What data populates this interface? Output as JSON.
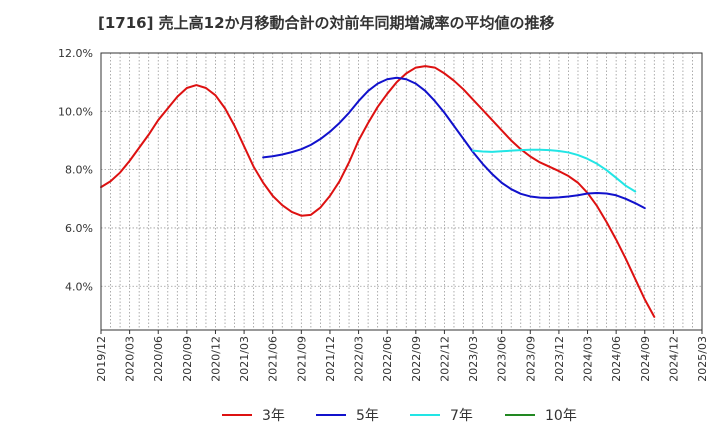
{
  "chart_data": {
    "type": "line",
    "title": "[1716]  売上高12か月移動合計の対前年同期増減率の平均値の推移",
    "xlabel": "",
    "ylabel": "",
    "ylim": [
      2.5,
      12.0
    ],
    "y_ticks": [
      4.0,
      6.0,
      8.0,
      10.0,
      12.0
    ],
    "y_tick_labels": [
      "4.0%",
      "6.0%",
      "8.0%",
      "10.0%",
      "12.0%"
    ],
    "x_tick_labels": [
      "2019/12",
      "2020/03",
      "2020/06",
      "2020/09",
      "2020/12",
      "2021/03",
      "2021/06",
      "2021/09",
      "2021/12",
      "2022/03",
      "2022/06",
      "2022/09",
      "2022/12",
      "2023/03",
      "2023/06",
      "2023/09",
      "2023/12",
      "2024/03",
      "2024/06",
      "2024/09",
      "2024/12",
      "2025/03"
    ],
    "x_range": [
      "2019/12",
      "2025/03"
    ],
    "grid": true,
    "legend_position": "bottom",
    "series": [
      {
        "name": "3年",
        "color": "#dd1111",
        "points": [
          [
            "2019/12",
            7.4
          ],
          [
            "2020/01",
            7.6
          ],
          [
            "2020/02",
            7.9
          ],
          [
            "2020/03",
            8.3
          ],
          [
            "2020/04",
            8.75
          ],
          [
            "2020/05",
            9.2
          ],
          [
            "2020/06",
            9.7
          ],
          [
            "2020/07",
            10.1
          ],
          [
            "2020/08",
            10.5
          ],
          [
            "2020/09",
            10.8
          ],
          [
            "2020/10",
            10.9
          ],
          [
            "2020/11",
            10.8
          ],
          [
            "2020/12",
            10.55
          ],
          [
            "2021/01",
            10.1
          ],
          [
            "2021/02",
            9.5
          ],
          [
            "2021/03",
            8.8
          ],
          [
            "2021/04",
            8.1
          ],
          [
            "2021/05",
            7.55
          ],
          [
            "2021/06",
            7.1
          ],
          [
            "2021/07",
            6.78
          ],
          [
            "2021/08",
            6.55
          ],
          [
            "2021/09",
            6.42
          ],
          [
            "2021/10",
            6.45
          ],
          [
            "2021/11",
            6.7
          ],
          [
            "2021/12",
            7.1
          ],
          [
            "2022/01",
            7.6
          ],
          [
            "2022/02",
            8.25
          ],
          [
            "2022/03",
            9.0
          ],
          [
            "2022/04",
            9.6
          ],
          [
            "2022/05",
            10.15
          ],
          [
            "2022/06",
            10.6
          ],
          [
            "2022/07",
            11.0
          ],
          [
            "2022/08",
            11.3
          ],
          [
            "2022/09",
            11.5
          ],
          [
            "2022/10",
            11.55
          ],
          [
            "2022/11",
            11.5
          ],
          [
            "2022/12",
            11.3
          ],
          [
            "2023/01",
            11.05
          ],
          [
            "2023/02",
            10.75
          ],
          [
            "2023/03",
            10.4
          ],
          [
            "2023/04",
            10.05
          ],
          [
            "2023/05",
            9.7
          ],
          [
            "2023/06",
            9.35
          ],
          [
            "2023/07",
            9.0
          ],
          [
            "2023/08",
            8.7
          ],
          [
            "2023/09",
            8.45
          ],
          [
            "2023/10",
            8.25
          ],
          [
            "2023/11",
            8.1
          ],
          [
            "2023/12",
            7.95
          ],
          [
            "2024/01",
            7.78
          ],
          [
            "2024/02",
            7.55
          ],
          [
            "2024/03",
            7.2
          ],
          [
            "2024/04",
            6.75
          ],
          [
            "2024/05",
            6.2
          ],
          [
            "2024/06",
            5.6
          ],
          [
            "2024/07",
            4.95
          ],
          [
            "2024/08",
            4.25
          ],
          [
            "2024/09",
            3.55
          ],
          [
            "2024/10",
            2.95
          ]
        ]
      },
      {
        "name": "5年",
        "color": "#1111cc",
        "points": [
          [
            "2021/05",
            8.42
          ],
          [
            "2021/06",
            8.46
          ],
          [
            "2021/07",
            8.52
          ],
          [
            "2021/08",
            8.6
          ],
          [
            "2021/09",
            8.7
          ],
          [
            "2021/10",
            8.85
          ],
          [
            "2021/11",
            9.05
          ],
          [
            "2021/12",
            9.3
          ],
          [
            "2022/01",
            9.6
          ],
          [
            "2022/02",
            9.95
          ],
          [
            "2022/03",
            10.35
          ],
          [
            "2022/04",
            10.7
          ],
          [
            "2022/05",
            10.95
          ],
          [
            "2022/06",
            11.1
          ],
          [
            "2022/07",
            11.15
          ],
          [
            "2022/08",
            11.1
          ],
          [
            "2022/09",
            10.95
          ],
          [
            "2022/10",
            10.7
          ],
          [
            "2022/11",
            10.35
          ],
          [
            "2022/12",
            9.95
          ],
          [
            "2023/01",
            9.5
          ],
          [
            "2023/02",
            9.05
          ],
          [
            "2023/03",
            8.6
          ],
          [
            "2023/04",
            8.2
          ],
          [
            "2023/05",
            7.85
          ],
          [
            "2023/06",
            7.55
          ],
          [
            "2023/07",
            7.33
          ],
          [
            "2023/08",
            7.17
          ],
          [
            "2023/09",
            7.08
          ],
          [
            "2023/10",
            7.04
          ],
          [
            "2023/11",
            7.03
          ],
          [
            "2023/12",
            7.05
          ],
          [
            "2024/01",
            7.08
          ],
          [
            "2024/02",
            7.12
          ],
          [
            "2024/03",
            7.18
          ],
          [
            "2024/04",
            7.2
          ],
          [
            "2024/05",
            7.18
          ],
          [
            "2024/06",
            7.12
          ],
          [
            "2024/07",
            7.0
          ],
          [
            "2024/08",
            6.85
          ],
          [
            "2024/09",
            6.68
          ]
        ]
      },
      {
        "name": "7年",
        "color": "#22e5e5",
        "points": [
          [
            "2023/03",
            8.65
          ],
          [
            "2023/04",
            8.62
          ],
          [
            "2023/05",
            8.61
          ],
          [
            "2023/06",
            8.63
          ],
          [
            "2023/07",
            8.65
          ],
          [
            "2023/08",
            8.67
          ],
          [
            "2023/09",
            8.68
          ],
          [
            "2023/10",
            8.68
          ],
          [
            "2023/11",
            8.67
          ],
          [
            "2023/12",
            8.64
          ],
          [
            "2024/01",
            8.59
          ],
          [
            "2024/02",
            8.5
          ],
          [
            "2024/03",
            8.37
          ],
          [
            "2024/04",
            8.2
          ],
          [
            "2024/05",
            7.98
          ],
          [
            "2024/06",
            7.72
          ],
          [
            "2024/07",
            7.45
          ],
          [
            "2024/08",
            7.25
          ]
        ]
      },
      {
        "name": "10年",
        "color": "#228822",
        "points": []
      }
    ]
  }
}
